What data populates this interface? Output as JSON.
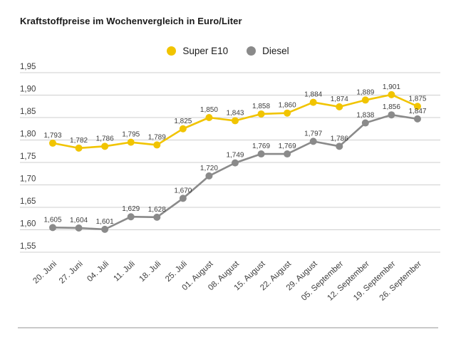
{
  "title": "Kraftstoffpreise im Wochenvergleich in Euro/Liter",
  "legend": {
    "items": [
      {
        "label": "Super E10",
        "color": "#F1C400"
      },
      {
        "label": "Diesel",
        "color": "#8A8A8A"
      }
    ]
  },
  "chart_data": {
    "type": "line",
    "title": "Kraftstoffpreise im Wochenvergleich in Euro/Liter",
    "categories": [
      "20. Juni",
      "27. Juni",
      "04. Juli",
      "11. Juli",
      "18. Juli",
      "25. Juli",
      "01. August",
      "08. August",
      "15. August",
      "22. August",
      "29. August",
      "05. September",
      "12. September",
      "19. September",
      "26. September"
    ],
    "series": [
      {
        "name": "Super E10",
        "color": "#F1C400",
        "values": [
          1.793,
          1.782,
          1.786,
          1.795,
          1.789,
          1.825,
          1.85,
          1.843,
          1.858,
          1.86,
          1.884,
          1.874,
          1.889,
          1.901,
          1.875
        ]
      },
      {
        "name": "Diesel",
        "color": "#8A8A8A",
        "values": [
          1.605,
          1.604,
          1.601,
          1.629,
          1.628,
          1.67,
          1.72,
          1.749,
          1.769,
          1.769,
          1.797,
          1.786,
          1.838,
          1.856,
          1.847
        ]
      }
    ],
    "ylim": [
      1.55,
      1.95
    ],
    "ytick_step": 0.05,
    "ytick_labels": [
      "1,95",
      "1,90",
      "1,85",
      "1,80",
      "1,75",
      "1,70",
      "1,65",
      "1,60",
      "1,55"
    ],
    "decimal_separator": ",",
    "grid": true,
    "legend_position": "top-center"
  }
}
